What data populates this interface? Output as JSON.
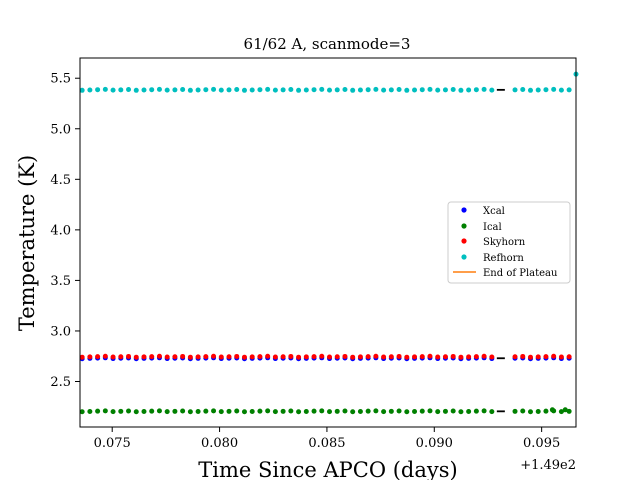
{
  "chart_data": {
    "type": "scatter",
    "title": "61/62 A, scanmode=3",
    "xlabel": "Time Since APCO (days)",
    "ylabel": "Temperature (K)",
    "x_offset_label": "+1.49e2",
    "xlim": [
      0.0735,
      0.0966
    ],
    "ylim": [
      2.05,
      5.7
    ],
    "xticks": [
      0.075,
      0.08,
      0.085,
      0.09,
      0.095
    ],
    "xtick_labels": [
      "0.075",
      "0.080",
      "0.085",
      "0.090",
      "0.095"
    ],
    "yticks": [
      2.5,
      3.0,
      3.5,
      4.0,
      4.5,
      5.0,
      5.5
    ],
    "ytick_labels": [
      "2.5",
      "3.0",
      "3.5",
      "4.0",
      "4.5",
      "5.0",
      "5.5"
    ],
    "grid": false,
    "legend_position": "center-right",
    "time_range": [
      0.0736,
      0.0964
    ],
    "gap": [
      0.0927,
      0.0935
    ],
    "series": [
      {
        "name": "Xcal",
        "color": "#0000ff",
        "y": 2.73
      },
      {
        "name": "Ical",
        "color": "#008000",
        "y": 2.205
      },
      {
        "name": "Skyhorn",
        "color": "#ff0000",
        "y": 2.745
      },
      {
        "name": "Refhorn",
        "color": "#00bfbf",
        "y": 5.385
      }
    ],
    "end_of_plateau": {
      "name": "End of Plateau",
      "color": "#ff7f0e"
    },
    "extra_points": [
      {
        "series": "Refhorn",
        "x": 0.0966,
        "y": 5.54
      },
      {
        "series": "Ical",
        "x": 0.0955,
        "y": 2.22
      },
      {
        "series": "Ical",
        "x": 0.0961,
        "y": 2.22
      }
    ]
  }
}
